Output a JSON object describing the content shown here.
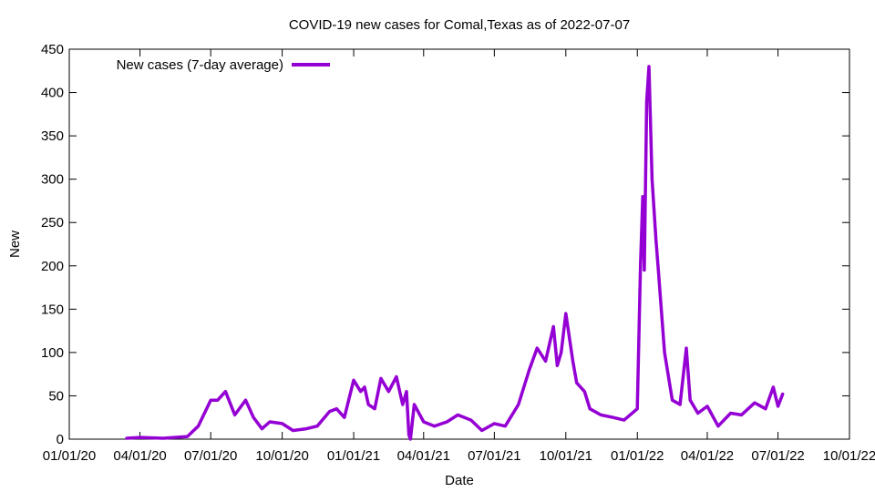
{
  "chart_data": {
    "type": "line",
    "title": "COVID-19 new cases for Comal,Texas as of 2022-07-07",
    "xlabel": "Date",
    "ylabel": "New",
    "xlim": [
      "2020-01-01",
      "2022-10-01"
    ],
    "ylim": [
      0,
      450
    ],
    "yticks": [
      0,
      50,
      100,
      150,
      200,
      250,
      300,
      350,
      400,
      450
    ],
    "xticks": [
      {
        "date": "2020-01-01",
        "label": "01/01/20"
      },
      {
        "date": "2020-04-01",
        "label": "04/01/20"
      },
      {
        "date": "2020-07-01",
        "label": "07/01/20"
      },
      {
        "date": "2020-10-01",
        "label": "10/01/20"
      },
      {
        "date": "2021-01-01",
        "label": "01/01/21"
      },
      {
        "date": "2021-04-01",
        "label": "04/01/21"
      },
      {
        "date": "2021-07-01",
        "label": "07/01/21"
      },
      {
        "date": "2021-10-01",
        "label": "10/01/21"
      },
      {
        "date": "2022-01-01",
        "label": "01/01/22"
      },
      {
        "date": "2022-04-01",
        "label": "04/01/22"
      },
      {
        "date": "2022-07-01",
        "label": "07/01/22"
      },
      {
        "date": "2022-10-01",
        "label": "10/01/22"
      }
    ],
    "grid": false,
    "legend_position": "top-left",
    "series": [
      {
        "name": "New cases (7-day average)",
        "color": "#9400d3",
        "points": [
          [
            "2020-03-15",
            1
          ],
          [
            "2020-04-01",
            2
          ],
          [
            "2020-05-01",
            1
          ],
          [
            "2020-06-01",
            3
          ],
          [
            "2020-06-15",
            15
          ],
          [
            "2020-07-01",
            45
          ],
          [
            "2020-07-10",
            45
          ],
          [
            "2020-07-20",
            55
          ],
          [
            "2020-08-01",
            28
          ],
          [
            "2020-08-15",
            45
          ],
          [
            "2020-08-25",
            25
          ],
          [
            "2020-09-05",
            12
          ],
          [
            "2020-09-15",
            20
          ],
          [
            "2020-10-01",
            18
          ],
          [
            "2020-10-15",
            10
          ],
          [
            "2020-11-01",
            12
          ],
          [
            "2020-11-15",
            15
          ],
          [
            "2020-12-01",
            32
          ],
          [
            "2020-12-10",
            35
          ],
          [
            "2020-12-20",
            25
          ],
          [
            "2021-01-01",
            68
          ],
          [
            "2021-01-10",
            55
          ],
          [
            "2021-01-15",
            60
          ],
          [
            "2021-01-20",
            40
          ],
          [
            "2021-01-28",
            35
          ],
          [
            "2021-02-05",
            70
          ],
          [
            "2021-02-15",
            55
          ],
          [
            "2021-02-25",
            72
          ],
          [
            "2021-03-05",
            40
          ],
          [
            "2021-03-10",
            55
          ],
          [
            "2021-03-13",
            5
          ],
          [
            "2021-03-15",
            0
          ],
          [
            "2021-03-20",
            40
          ],
          [
            "2021-04-01",
            20
          ],
          [
            "2021-04-15",
            15
          ],
          [
            "2021-05-01",
            20
          ],
          [
            "2021-05-15",
            28
          ],
          [
            "2021-06-01",
            22
          ],
          [
            "2021-06-15",
            10
          ],
          [
            "2021-07-01",
            18
          ],
          [
            "2021-07-15",
            15
          ],
          [
            "2021-08-01",
            40
          ],
          [
            "2021-08-15",
            80
          ],
          [
            "2021-08-25",
            105
          ],
          [
            "2021-09-05",
            90
          ],
          [
            "2021-09-15",
            130
          ],
          [
            "2021-09-20",
            85
          ],
          [
            "2021-09-25",
            100
          ],
          [
            "2021-10-01",
            145
          ],
          [
            "2021-10-10",
            90
          ],
          [
            "2021-10-15",
            65
          ],
          [
            "2021-10-25",
            55
          ],
          [
            "2021-11-01",
            35
          ],
          [
            "2021-11-15",
            28
          ],
          [
            "2021-12-01",
            25
          ],
          [
            "2021-12-15",
            22
          ],
          [
            "2022-01-01",
            35
          ],
          [
            "2022-01-05",
            200
          ],
          [
            "2022-01-08",
            280
          ],
          [
            "2022-01-10",
            195
          ],
          [
            "2022-01-13",
            390
          ],
          [
            "2022-01-16",
            430
          ],
          [
            "2022-01-20",
            300
          ],
          [
            "2022-01-25",
            230
          ],
          [
            "2022-01-28",
            195
          ],
          [
            "2022-02-05",
            100
          ],
          [
            "2022-02-15",
            45
          ],
          [
            "2022-02-25",
            40
          ],
          [
            "2022-03-05",
            105
          ],
          [
            "2022-03-10",
            45
          ],
          [
            "2022-03-20",
            30
          ],
          [
            "2022-04-01",
            38
          ],
          [
            "2022-04-15",
            15
          ],
          [
            "2022-05-01",
            30
          ],
          [
            "2022-05-15",
            28
          ],
          [
            "2022-06-01",
            42
          ],
          [
            "2022-06-15",
            35
          ],
          [
            "2022-06-25",
            60
          ],
          [
            "2022-07-01",
            38
          ],
          [
            "2022-07-07",
            52
          ]
        ]
      }
    ]
  }
}
